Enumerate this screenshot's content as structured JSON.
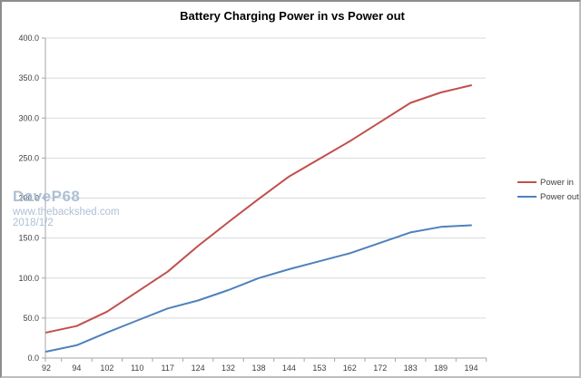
{
  "title": "Battery Charging Power in vs Power out",
  "watermark": {
    "line1": "DaveP68",
    "line2": "www.thebackshed.com",
    "line3": "2018/1/2"
  },
  "chart_data": {
    "type": "line",
    "title": "Battery Charging Power in vs Power out",
    "xlabel": "",
    "ylabel": "",
    "categories": [
      "92",
      "94",
      "102",
      "110",
      "117",
      "124",
      "132",
      "138",
      "144",
      "153",
      "162",
      "172",
      "183",
      "189",
      "194"
    ],
    "series": [
      {
        "name": "Power in",
        "color": "#c0504d",
        "values": [
          32,
          40,
          58,
          83,
          108,
          140,
          170,
          199,
          227,
          249,
          271,
          295,
          319,
          332,
          341
        ]
      },
      {
        "name": "Power out",
        "color": "#4f81bd",
        "values": [
          8,
          16,
          32,
          47,
          62,
          72,
          85,
          100,
          111,
          121,
          131,
          144,
          157,
          164,
          166
        ]
      }
    ],
    "ylim": [
      0,
      400
    ],
    "ytick_step": 50,
    "ytick_labels": [
      "400.0",
      "350.0",
      "300.0",
      "250.0",
      "200.0",
      "150.0",
      "100.0",
      "50.0",
      "0.0"
    ],
    "grid": true,
    "legend_position": "right"
  },
  "colors": {
    "grid": "#d9d9d9",
    "axis": "#a6a6a6",
    "tick_label": "#3f3f3f",
    "watermark": "#a4b9d0",
    "power_in": "#c0504d",
    "power_out": "#4f81bd"
  }
}
